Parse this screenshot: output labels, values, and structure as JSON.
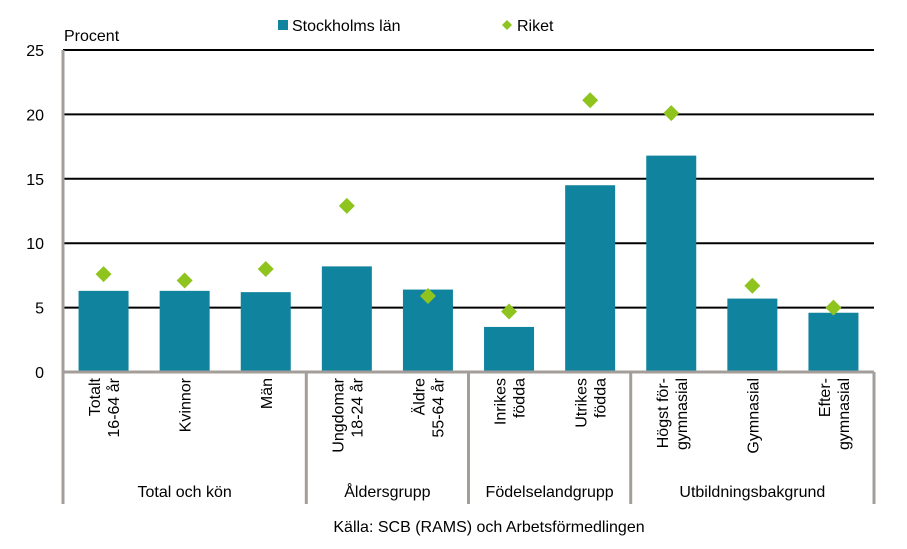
{
  "chart_data": {
    "type": "bar",
    "ylabel": "Procent",
    "ylim": [
      0,
      25
    ],
    "yticks": [
      0,
      5,
      10,
      15,
      20,
      25
    ],
    "grid": true,
    "legend_position": "top",
    "categories": [
      [
        "Totalt",
        "16-64 år"
      ],
      [
        "Kvinnor"
      ],
      [
        "Män"
      ],
      [
        "Ungdomar",
        "18-24 år"
      ],
      [
        "Äldre",
        "55-64 år"
      ],
      [
        "Inrikes",
        "födda"
      ],
      [
        "Utrikes",
        "födda"
      ],
      [
        "Högst för-",
        "gymnasial"
      ],
      [
        "Gymnasial"
      ],
      [
        "Efter-",
        "gymnasial"
      ]
    ],
    "groups": [
      {
        "label": "Total och kön",
        "count": 3
      },
      {
        "label": "Åldersgrupp",
        "count": 2
      },
      {
        "label": "Födelselandgrupp",
        "count": 2
      },
      {
        "label": "Utbildningsbakgrund",
        "count": 3
      }
    ],
    "series": [
      {
        "name": "Stockholms län",
        "kind": "bar",
        "color": "#10839e",
        "values": [
          6.3,
          6.3,
          6.2,
          8.2,
          6.4,
          3.5,
          14.5,
          16.8,
          5.7,
          4.6
        ]
      },
      {
        "name": "Riket",
        "kind": "marker",
        "color": "#8fc41f",
        "values": [
          7.6,
          7.1,
          8.0,
          12.9,
          5.9,
          4.7,
          21.1,
          20.1,
          6.7,
          5.0
        ]
      }
    ],
    "source": "Källa: SCB (RAMS) och Arbetsförmedlingen"
  }
}
